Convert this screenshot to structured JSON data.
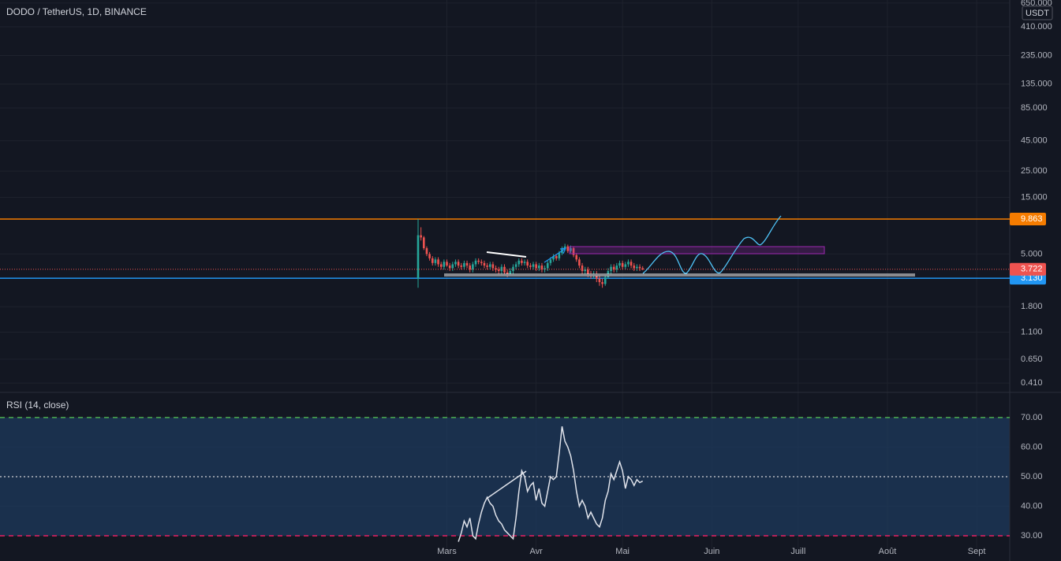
{
  "header": {
    "symbol": "DODO / TetherUS, 1D, BINANCE",
    "currency": "USDT"
  },
  "x_axis": {
    "categories": [
      "Mars",
      "Avr",
      "Mai",
      "Juin",
      "Juill",
      "Août",
      "Sept"
    ]
  },
  "chart_data": [
    {
      "type": "candlestick",
      "log_scale": true,
      "grid": true,
      "up_color": "#26a69a",
      "down_color": "#ef5350",
      "ylim": [
        0.347,
        690
      ],
      "yticks": [
        {
          "value": 650,
          "label": "650.000"
        },
        {
          "value": 410,
          "label": "410.000"
        },
        {
          "value": 235,
          "label": "235.000"
        },
        {
          "value": 135,
          "label": "135.000"
        },
        {
          "value": 85,
          "label": "85.000"
        },
        {
          "value": 45,
          "label": "45.000"
        },
        {
          "value": 25,
          "label": "25.000"
        },
        {
          "value": 15,
          "label": "15.000"
        },
        {
          "value": 5,
          "label": "5.000"
        },
        {
          "value": 1.8,
          "label": "1.800"
        },
        {
          "value": 1.1,
          "label": "1.100"
        },
        {
          "value": 0.65,
          "label": "0.650"
        },
        {
          "value": 0.41,
          "label": "0.410"
        }
      ],
      "lines": [
        {
          "value": 9.863,
          "color": "#f57c00"
        },
        {
          "value": 3.13,
          "label": "3.130",
          "color": "#2196f3"
        }
      ],
      "open": [
        3.1,
        7.2,
        6.9,
        5.6,
        5.0,
        4.6,
        4.2,
        4.5,
        4.1,
        3.9,
        4.3,
        4.0,
        3.8,
        4.1,
        4.3,
        4.0,
        3.9,
        4.2,
        4.0,
        3.7,
        4.1,
        4.4,
        4.3,
        4.2,
        4.0,
        3.9,
        4.1,
        3.8,
        3.7,
        3.6,
        3.9,
        3.5,
        3.4,
        3.6,
        3.9,
        4.1,
        4.4,
        4.2,
        4.3,
        4.0,
        3.9,
        4.1,
        3.8,
        4.0,
        3.7,
        3.8,
        4.2,
        4.5,
        4.8,
        4.6,
        5.1,
        5.5,
        5.8,
        5.3,
        5.6,
        4.9,
        4.5,
        4.0,
        3.6,
        3.7,
        3.4,
        3.3,
        3.4,
        3.1,
        2.9,
        2.8,
        3.2,
        3.6,
        3.9,
        3.7,
        4.0,
        4.2,
        3.9,
        4.1,
        4.3,
        4.0,
        3.8,
        3.9,
        3.8
      ],
      "high": [
        9.863,
        8.4,
        7.1,
        5.8,
        5.2,
        4.8,
        4.7,
        4.7,
        4.3,
        4.5,
        4.5,
        4.2,
        4.3,
        4.5,
        4.5,
        4.2,
        4.4,
        4.4,
        4.2,
        4.3,
        4.6,
        4.6,
        4.5,
        4.4,
        4.2,
        4.3,
        4.3,
        4.0,
        3.9,
        4.1,
        4.1,
        3.7,
        3.8,
        4.1,
        4.3,
        4.6,
        4.6,
        4.5,
        4.5,
        4.2,
        4.3,
        4.3,
        4.2,
        4.2,
        4.0,
        4.4,
        4.7,
        5.0,
        5.0,
        5.3,
        5.8,
        6.1,
        6.0,
        5.9,
        5.8,
        5.1,
        4.7,
        4.2,
        3.9,
        3.9,
        3.6,
        3.6,
        3.6,
        3.3,
        3.1,
        3.4,
        3.8,
        4.1,
        4.1,
        4.2,
        4.4,
        4.4,
        4.3,
        4.5,
        4.5,
        4.2,
        4.1,
        4.1,
        3.95
      ],
      "low": [
        2.6,
        6.5,
        5.4,
        4.8,
        4.4,
        4.0,
        4.0,
        3.9,
        3.7,
        3.7,
        3.9,
        3.6,
        3.6,
        3.9,
        3.8,
        3.7,
        3.7,
        3.8,
        3.5,
        3.5,
        3.9,
        4.1,
        4.0,
        3.8,
        3.7,
        3.7,
        3.6,
        3.5,
        3.4,
        3.4,
        3.3,
        3.2,
        3.3,
        3.4,
        3.7,
        3.9,
        4.0,
        4.0,
        3.8,
        3.7,
        3.7,
        3.6,
        3.6,
        3.5,
        3.5,
        3.6,
        4.0,
        4.3,
        4.4,
        4.4,
        4.9,
        5.3,
        5.1,
        5.1,
        4.7,
        4.3,
        3.8,
        3.4,
        3.4,
        3.2,
        3.1,
        3.1,
        2.9,
        2.7,
        2.6,
        2.7,
        3.1,
        3.4,
        3.5,
        3.5,
        3.8,
        3.7,
        3.7,
        3.9,
        3.8,
        3.6,
        3.6,
        3.6,
        3.65
      ],
      "close": [
        7.2,
        6.9,
        5.6,
        5.0,
        4.6,
        4.2,
        4.5,
        4.1,
        3.9,
        4.3,
        4.0,
        3.8,
        4.1,
        4.3,
        4.0,
        3.9,
        4.2,
        4.0,
        3.7,
        4.1,
        4.4,
        4.3,
        4.2,
        4.0,
        3.9,
        4.1,
        3.8,
        3.7,
        3.6,
        3.9,
        3.5,
        3.4,
        3.6,
        3.9,
        4.1,
        4.4,
        4.2,
        4.3,
        4.0,
        3.9,
        4.1,
        3.8,
        4.0,
        3.7,
        3.8,
        4.2,
        4.5,
        4.8,
        4.6,
        5.1,
        5.5,
        5.8,
        5.3,
        5.6,
        4.9,
        4.5,
        4.0,
        3.6,
        3.7,
        3.4,
        3.3,
        3.4,
        3.1,
        2.9,
        2.8,
        3.2,
        3.6,
        3.9,
        3.7,
        4.0,
        4.2,
        3.9,
        4.1,
        4.3,
        4.0,
        3.8,
        3.9,
        3.8,
        3.722
      ]
    },
    {
      "type": "line",
      "title": "RSI (14, close)",
      "grid": true,
      "ylim": [
        24.67,
        78.5
      ],
      "yticks": [
        {
          "value": 30,
          "label": "30.00"
        },
        {
          "value": 40,
          "label": "40.00"
        },
        {
          "value": 50,
          "label": "50.00"
        },
        {
          "value": 60,
          "label": "60.00"
        },
        {
          "value": 70,
          "label": "70.00"
        }
      ],
      "bands": [
        {
          "value": 70,
          "color": "#4caf50"
        },
        {
          "value": 50,
          "color": "#b2b5be"
        },
        {
          "value": 30,
          "color": "#e91e63"
        }
      ],
      "series": [
        {
          "name": "RSI",
          "color": "#e0e3eb",
          "values": [
            null,
            null,
            null,
            null,
            null,
            null,
            null,
            null,
            null,
            null,
            null,
            null,
            null,
            null,
            28,
            31,
            35,
            33,
            36,
            30,
            29,
            34,
            38,
            41,
            43,
            41,
            40,
            37,
            35,
            34,
            32,
            31,
            30,
            29,
            36,
            45,
            52,
            50,
            45,
            47,
            48,
            42,
            46,
            41,
            40,
            45,
            50,
            49,
            50,
            58,
            67,
            62,
            60,
            57,
            52,
            45,
            40,
            42,
            40,
            36,
            38,
            36,
            34,
            33,
            36,
            42,
            45,
            51,
            49,
            52,
            55,
            52,
            46,
            50,
            49,
            47,
            49,
            48,
            48.5
          ]
        }
      ]
    }
  ]
}
